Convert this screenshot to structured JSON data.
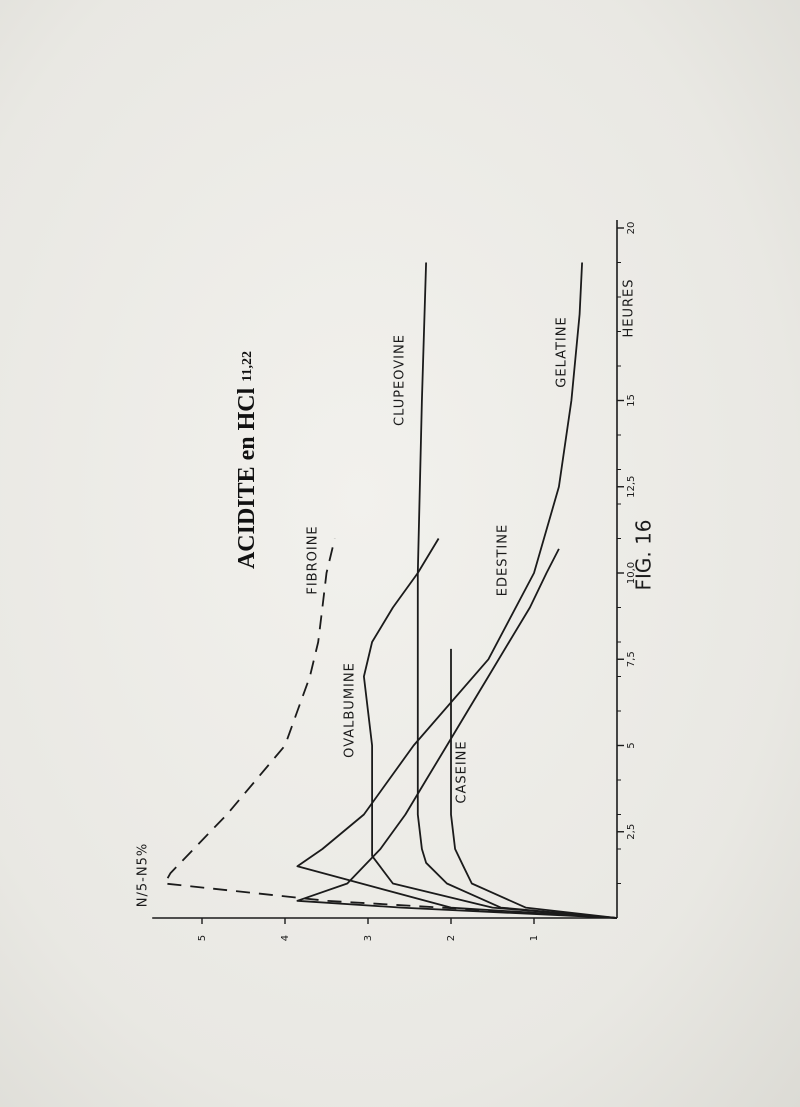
{
  "chart_data": {
    "type": "line",
    "title": "ACIDITE en HCl",
    "title_value": "11,22",
    "figure_label": "FIG. 16",
    "xlabel": "HEURES",
    "ylabel": "N/5-N5%",
    "xlim": [
      0,
      20
    ],
    "ylim": [
      0,
      5.6
    ],
    "x_ticks": [
      "2,5",
      "5",
      "7,5",
      "10,0",
      "12,5",
      "15",
      "20"
    ],
    "y_ticks": [
      "1",
      "2",
      "3",
      "4",
      "5"
    ],
    "orientation": "rotated 90° counter-clockwise on page",
    "series": [
      {
        "name": "FIBROINE",
        "style": "dashed",
        "x": [
          0,
          0.5,
          1.0,
          1.3,
          2.0,
          3.0,
          4.0,
          5.0,
          6.0,
          7.0,
          8.0,
          9.0,
          10.0,
          11.0
        ],
        "y": [
          0,
          3.5,
          5.45,
          5.38,
          5.1,
          4.7,
          4.35,
          4.0,
          3.85,
          3.7,
          3.6,
          3.55,
          3.5,
          3.4
        ]
      },
      {
        "name": "OVALBUMINE",
        "style": "solid",
        "x": [
          0,
          0.3,
          1.0,
          1.8,
          5.0,
          6.0,
          7.0,
          8.0,
          9.0,
          10.0,
          11.0
        ],
        "y": [
          0,
          1.5,
          2.7,
          2.95,
          2.95,
          3.0,
          3.05,
          2.95,
          2.7,
          2.4,
          2.15
        ]
      },
      {
        "name": "CASEINE",
        "style": "solid",
        "x": [
          0,
          0.3,
          1.0,
          1.5,
          2.0,
          3.0,
          5.0,
          7.8
        ],
        "y": [
          0,
          1.1,
          1.75,
          1.85,
          1.95,
          2.0,
          2.0,
          2.0
        ]
      },
      {
        "name": "CLUPEOVINE",
        "style": "solid",
        "x": [
          0,
          0.3,
          1.0,
          1.6,
          2.0,
          3.0,
          5.0,
          10.0,
          15.0,
          19.0
        ],
        "y": [
          0,
          1.4,
          2.05,
          2.3,
          2.35,
          2.4,
          2.4,
          2.4,
          2.35,
          2.3
        ]
      },
      {
        "name": "EDESTINE",
        "style": "solid",
        "x": [
          0,
          0.3,
          0.5,
          1.0,
          2.0,
          3.0,
          4.0,
          5.0,
          6.0,
          7.0,
          8.0,
          9.0,
          10.0,
          10.7
        ],
        "y": [
          0,
          2.6,
          3.85,
          3.25,
          2.85,
          2.55,
          2.3,
          2.05,
          1.8,
          1.55,
          1.3,
          1.05,
          0.85,
          0.7
        ]
      },
      {
        "name": "GELATINE",
        "style": "solid",
        "x": [
          0,
          0.3,
          1.5,
          2.0,
          3.0,
          5.0,
          7.5,
          10.0,
          12.5,
          15.0,
          17.5,
          19.0
        ],
        "y": [
          0,
          2.0,
          3.85,
          3.55,
          3.05,
          2.45,
          1.55,
          1.0,
          0.7,
          0.55,
          0.45,
          0.42
        ]
      }
    ]
  }
}
